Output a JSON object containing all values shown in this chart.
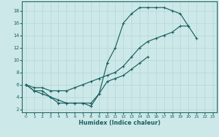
{
  "xlabel": "Humidex (Indice chaleur)",
  "background_color": "#cce8e8",
  "grid_color": "#b8d8d8",
  "line_color": "#1a6060",
  "xlim": [
    -0.5,
    23.5
  ],
  "ylim": [
    1.5,
    19.5
  ],
  "yticks": [
    2,
    4,
    6,
    8,
    10,
    12,
    14,
    16,
    18
  ],
  "xticks": [
    0,
    1,
    2,
    3,
    4,
    5,
    6,
    7,
    8,
    9,
    10,
    11,
    12,
    13,
    14,
    15,
    16,
    17,
    18,
    19,
    20,
    21,
    22,
    23
  ],
  "curve_max": {
    "x": [
      0,
      1,
      2,
      3,
      4,
      5,
      6,
      7,
      8,
      9,
      10,
      11,
      12,
      13,
      14,
      15,
      16,
      17,
      18,
      19,
      20,
      21,
      22,
      23
    ],
    "y": [
      6.0,
      5.0,
      5.0,
      4.0,
      3.0,
      3.0,
      3.0,
      3.0,
      3.0,
      4.5,
      9.5,
      12.0,
      16.0,
      17.5,
      18.5,
      18.5,
      18.5,
      18.5,
      18.0,
      17.5,
      15.5,
      13.5,
      null,
      null
    ]
  },
  "curve_avg": {
    "x": [
      0,
      1,
      2,
      3,
      4,
      5,
      6,
      7,
      8,
      9,
      10,
      11,
      12,
      13,
      14,
      15,
      16,
      17,
      18,
      19,
      20,
      21,
      22,
      23
    ],
    "y": [
      6.0,
      5.5,
      5.5,
      5.0,
      5.0,
      5.0,
      5.5,
      6.0,
      6.5,
      7.0,
      7.5,
      8.0,
      9.0,
      10.5,
      12.0,
      13.0,
      13.5,
      14.0,
      14.5,
      15.5,
      15.5,
      null,
      null,
      null
    ]
  },
  "curve_min": {
    "x": [
      0,
      1,
      2,
      3,
      4,
      5,
      6,
      7,
      8,
      9,
      10,
      11,
      12,
      13,
      14,
      15,
      16,
      17,
      18,
      19,
      20,
      21,
      22,
      23
    ],
    "y": [
      6.0,
      5.0,
      4.5,
      4.0,
      3.5,
      3.0,
      3.0,
      3.0,
      2.5,
      4.5,
      6.5,
      7.0,
      7.5,
      8.5,
      9.5,
      10.5,
      null,
      null,
      null,
      null,
      null,
      null,
      null,
      null
    ]
  }
}
